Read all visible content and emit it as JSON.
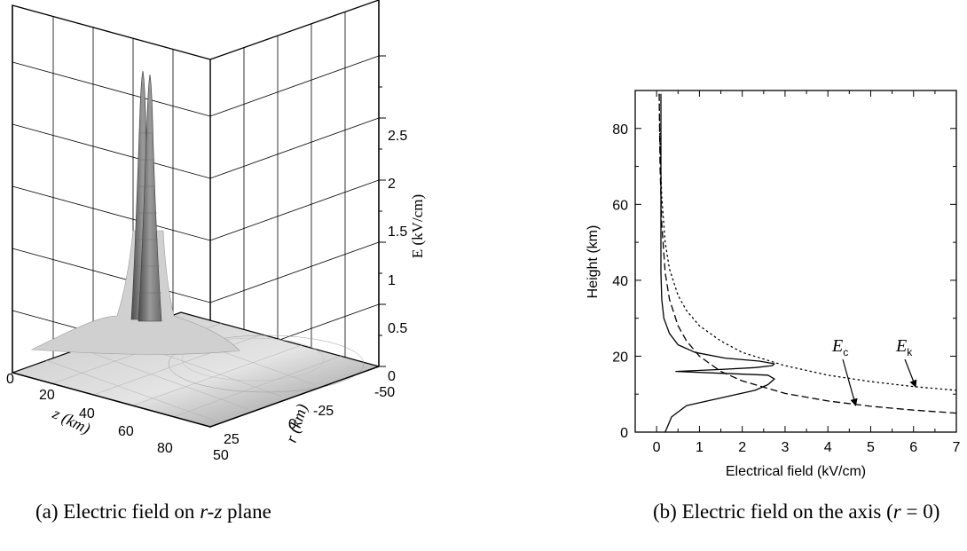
{
  "captions": {
    "a": {
      "prefix": "(a) Electric field on ",
      "var": "r-z",
      "suffix": " plane"
    },
    "b": {
      "prefix": "(b) Electric field on the axis (",
      "var": "r",
      "suffix": " = 0)"
    }
  },
  "chart_data": [
    {
      "id": "a",
      "type": "surface3d",
      "zlabel": "E (kV/cm)",
      "zticks": [
        "0",
        "0.5",
        "1",
        "1.5",
        "2",
        "2.5"
      ],
      "zlim": [
        0,
        2.9
      ],
      "z_axis_label": "z (km)",
      "z_axis_ticks": [
        "0",
        "20",
        "40",
        "60",
        "80"
      ],
      "r_axis_label": "r (km)",
      "r_axis_ticks": [
        "-50",
        "-25",
        "0",
        "25",
        "50"
      ],
      "peak_value": 2.8,
      "peak_locations_km": [
        14,
        18
      ],
      "colors": {
        "surface_dark": "#505050",
        "surface_light": "#d8d8d8",
        "floor": "#a0a0a0"
      }
    },
    {
      "id": "b",
      "type": "line",
      "xlabel": "Electrical field (kV/cm)",
      "ylabel": "Height  (km)",
      "xlim": [
        -0.5,
        7
      ],
      "ylim": [
        0,
        90
      ],
      "xticks": [
        "0",
        "1",
        "2",
        "3",
        "4",
        "5",
        "6",
        "7"
      ],
      "yticks": [
        "0",
        "20",
        "40",
        "60",
        "80"
      ],
      "series": [
        {
          "style": "solid",
          "points": [
            [
              0.2,
              0
            ],
            [
              0.35,
              4
            ],
            [
              0.7,
              7
            ],
            [
              1.5,
              9
            ],
            [
              2.3,
              11
            ],
            [
              2.6,
              12.5
            ],
            [
              2.75,
              14
            ],
            [
              2.6,
              15
            ],
            [
              1.5,
              15.5
            ],
            [
              0.45,
              16
            ],
            [
              1.5,
              16.5
            ],
            [
              2.3,
              17
            ],
            [
              2.7,
              17.5
            ],
            [
              2.75,
              18
            ],
            [
              2.4,
              18.7
            ],
            [
              1.6,
              19.5
            ],
            [
              0.9,
              21
            ],
            [
              0.5,
              23
            ],
            [
              0.3,
              26
            ],
            [
              0.17,
              30
            ],
            [
              0.12,
              35
            ],
            [
              0.1,
              42
            ],
            [
              0.1,
              55
            ],
            [
              0.1,
              70
            ],
            [
              0.1,
              89
            ]
          ]
        },
        {
          "style": "dashed",
          "label": "E_c",
          "points": [
            [
              7,
              5
            ],
            [
              6,
              5.8
            ],
            [
              5,
              6.8
            ],
            [
              4,
              8.2
            ],
            [
              3,
              10.2
            ],
            [
              2,
              13.5
            ],
            [
              1.5,
              16
            ],
            [
              1,
              20
            ],
            [
              0.7,
              24
            ],
            [
              0.5,
              28
            ],
            [
              0.3,
              35
            ],
            [
              0.2,
              42
            ],
            [
              0.12,
              55
            ],
            [
              0.08,
              70
            ],
            [
              0.06,
              89
            ]
          ]
        },
        {
          "style": "dotted",
          "label": "E_k",
          "points": [
            [
              7,
              11
            ],
            [
              6,
              12
            ],
            [
              5,
              13.3
            ],
            [
              4,
              15
            ],
            [
              3,
              17.5
            ],
            [
              2,
              21
            ],
            [
              1.5,
              24
            ],
            [
              1,
              28
            ],
            [
              0.7,
              32
            ],
            [
              0.5,
              36
            ],
            [
              0.3,
              43
            ],
            [
              0.2,
              50
            ],
            [
              0.12,
              62
            ],
            [
              0.08,
              75
            ],
            [
              0.06,
              89
            ]
          ]
        }
      ],
      "annotations": [
        {
          "text": "E",
          "sub": "c",
          "arrow_to": [
            4.65,
            7.0
          ]
        },
        {
          "text": "E",
          "sub": "k",
          "arrow_to": [
            6.05,
            11.9
          ]
        }
      ]
    }
  ]
}
